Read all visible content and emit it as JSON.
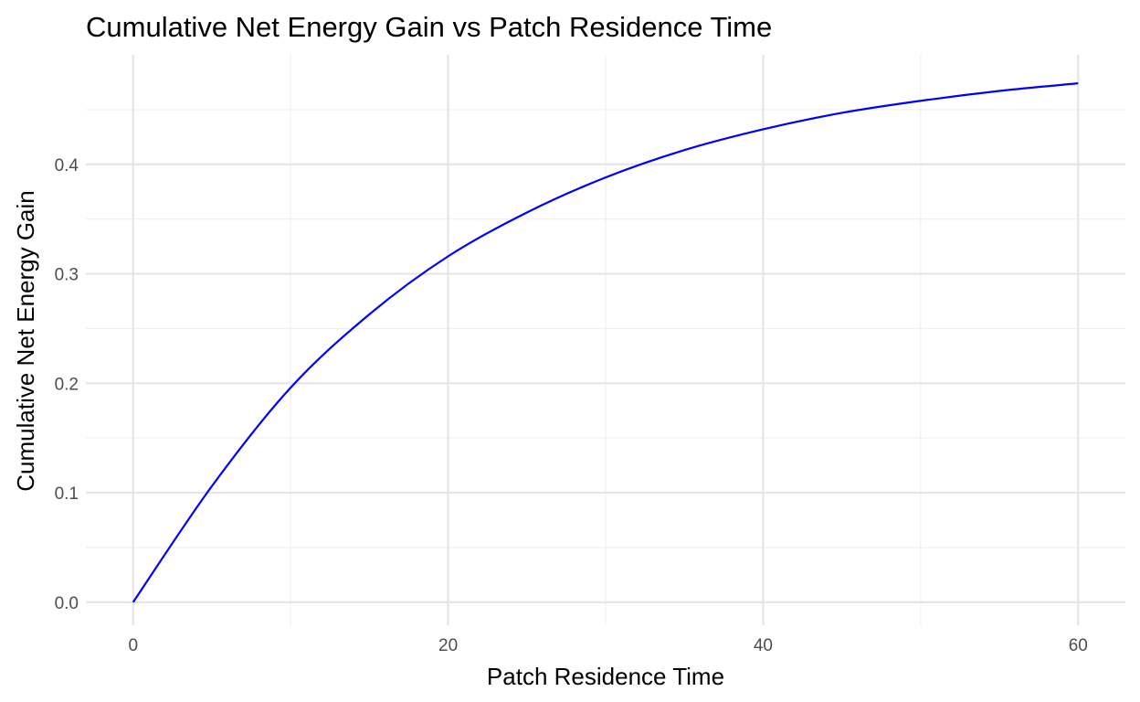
{
  "chart_data": {
    "type": "line",
    "title": "Cumulative Net Energy Gain vs Patch Residence Time",
    "xlabel": "Patch Residence Time",
    "ylabel": "Cumulative Net Energy Gain",
    "xlim": [
      -3,
      63
    ],
    "ylim": [
      -0.021,
      0.5
    ],
    "x_ticks": [
      0,
      20,
      40,
      60
    ],
    "y_ticks": [
      0.0,
      0.1,
      0.2,
      0.3,
      0.4
    ],
    "x_tick_labels": [
      "0",
      "20",
      "40",
      "60"
    ],
    "y_tick_labels": [
      "0.0",
      "0.1",
      "0.2",
      "0.3",
      "0.4"
    ],
    "x_minor_ticks": [
      10,
      30,
      50
    ],
    "y_minor_ticks": [
      0.05,
      0.15,
      0.25,
      0.35,
      0.45
    ],
    "grid": true,
    "series": [
      {
        "color": "#0000ff",
        "x": [
          0,
          5,
          10,
          15,
          20,
          25,
          30,
          35,
          40,
          45,
          50,
          55,
          60
        ],
        "y": [
          0.0,
          0.106,
          0.196,
          0.263,
          0.316,
          0.356,
          0.388,
          0.413,
          0.432,
          0.447,
          0.458,
          0.467,
          0.474
        ]
      }
    ]
  }
}
